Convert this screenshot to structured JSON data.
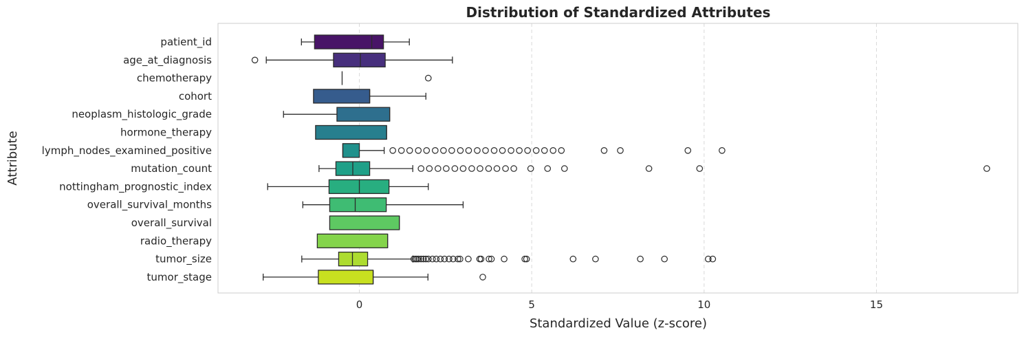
{
  "chart_data": {
    "type": "boxplot",
    "orientation": "horizontal",
    "title": "Distribution of Standardized Attributes",
    "xlabel": "Standardized Value (z-score)",
    "ylabel": "Attribute",
    "xlim": [
      -4.1,
      19.1
    ],
    "xticks": [
      0,
      5,
      10,
      15
    ],
    "grid": "x",
    "palette": "viridis",
    "categories": [
      {
        "name": "patient_id",
        "color": "#481467",
        "whislo": -1.68,
        "q1": -1.3,
        "median": 0.36,
        "q3": 0.7,
        "whishi": 1.45,
        "outliers": []
      },
      {
        "name": "age_at_diagnosis",
        "color": "#472f7d",
        "whislo": -2.7,
        "q1": -0.75,
        "median": 0.03,
        "q3": 0.75,
        "whishi": 2.7,
        "outliers": [
          -3.03
        ]
      },
      {
        "name": "chemotherapy",
        "color": "#3f4889",
        "whislo": -0.5,
        "q1": -0.5,
        "median": -0.5,
        "q3": -0.5,
        "whishi": -0.5,
        "outliers": [
          2.0
        ]
      },
      {
        "name": "cohort",
        "color": "#365c8d",
        "whislo": -1.33,
        "q1": -1.33,
        "median": 0.3,
        "q3": 0.3,
        "whishi": 1.93,
        "outliers": []
      },
      {
        "name": "neoplasm_histologic_grade",
        "color": "#2e6f8e",
        "whislo": -2.2,
        "q1": -0.65,
        "median": 0.88,
        "q3": 0.88,
        "whishi": 0.88,
        "outliers": []
      },
      {
        "name": "hormone_therapy",
        "color": "#277f8e",
        "whislo": -1.27,
        "q1": -1.27,
        "median": 0.79,
        "q3": 0.79,
        "whishi": 0.79,
        "outliers": []
      },
      {
        "name": "lymph_nodes_examined_positive",
        "color": "#21918c",
        "whislo": -0.48,
        "q1": -0.48,
        "median": -0.48,
        "q3": 0.0,
        "whishi": 0.72,
        "outliers": [
          0.97,
          1.22,
          1.46,
          1.71,
          1.95,
          2.2,
          2.44,
          2.68,
          2.93,
          3.17,
          3.42,
          3.66,
          3.91,
          4.15,
          4.4,
          4.64,
          4.88,
          5.13,
          5.37,
          5.62,
          5.86,
          7.1,
          7.57,
          9.53,
          10.52
        ]
      },
      {
        "name": "mutation_count",
        "color": "#1fa088",
        "whislo": -1.17,
        "q1": -0.68,
        "median": -0.19,
        "q3": 0.3,
        "whishi": 1.55,
        "outliers": [
          1.79,
          2.03,
          2.28,
          2.52,
          2.77,
          3.01,
          3.26,
          3.5,
          3.75,
          3.99,
          4.24,
          4.48,
          4.97,
          5.46,
          5.95,
          8.4,
          9.87,
          18.2
        ]
      },
      {
        "name": "nottingham_prognostic_index",
        "color": "#28ae80",
        "whislo": -2.66,
        "q1": -0.88,
        "median": 0.0,
        "q3": 0.86,
        "whishi": 2.0,
        "outliers": []
      },
      {
        "name": "overall_survival_months",
        "color": "#3fbc73",
        "whislo": -1.64,
        "q1": -0.86,
        "median": -0.12,
        "q3": 0.78,
        "whishi": 3.01,
        "outliers": []
      },
      {
        "name": "overall_survival",
        "color": "#5ec962",
        "whislo": -0.86,
        "q1": -0.86,
        "median": 1.16,
        "q3": 1.16,
        "whishi": 1.16,
        "outliers": []
      },
      {
        "name": "radio_therapy",
        "color": "#84d44b",
        "whislo": -1.22,
        "q1": -1.22,
        "median": 0.82,
        "q3": 0.82,
        "whishi": 0.82,
        "outliers": []
      },
      {
        "name": "tumor_size",
        "color": "#addc30",
        "whislo": -1.67,
        "q1": -0.6,
        "median": -0.2,
        "q3": 0.24,
        "whishi": 1.55,
        "outliers": [
          1.58,
          1.63,
          1.67,
          1.72,
          1.79,
          1.86,
          1.93,
          2.0,
          2.12,
          2.23,
          2.35,
          2.47,
          2.6,
          2.72,
          2.86,
          2.92,
          3.16,
          3.49,
          3.53,
          3.76,
          3.83,
          4.2,
          4.8,
          4.85,
          6.2,
          6.85,
          8.15,
          8.85,
          10.12,
          10.25
        ]
      },
      {
        "name": "tumor_stage",
        "color": "#c8e020",
        "whislo": -2.79,
        "q1": -1.19,
        "median": 0.4,
        "q3": 0.4,
        "whishi": 1.99,
        "outliers": [
          3.58
        ]
      }
    ]
  }
}
